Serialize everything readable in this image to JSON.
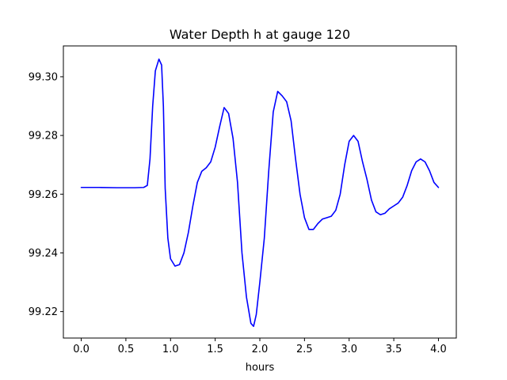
{
  "chart_data": {
    "type": "line",
    "title": "Water Depth h at gauge 120",
    "xlabel": "hours",
    "ylabel": "",
    "xlim": [
      -0.2,
      4.2
    ],
    "ylim": [
      99.211,
      99.3105
    ],
    "xticks": [
      0.0,
      0.5,
      1.0,
      1.5,
      2.0,
      2.5,
      3.0,
      3.5,
      4.0
    ],
    "xtick_labels": [
      "0.0",
      "0.5",
      "1.0",
      "1.5",
      "2.0",
      "2.5",
      "3.0",
      "3.5",
      "4.0"
    ],
    "yticks": [
      99.22,
      99.24,
      99.26,
      99.28,
      99.3
    ],
    "ytick_labels": [
      "99.22",
      "99.24",
      "99.26",
      "99.28",
      "99.30"
    ],
    "grid": false,
    "legend": "none",
    "series": [
      {
        "color": "#0000ff",
        "x": [
          0.0,
          0.2,
          0.4,
          0.6,
          0.7,
          0.74,
          0.77,
          0.8,
          0.83,
          0.87,
          0.9,
          0.92,
          0.94,
          0.97,
          1.0,
          1.05,
          1.1,
          1.15,
          1.2,
          1.25,
          1.3,
          1.35,
          1.4,
          1.45,
          1.5,
          1.55,
          1.6,
          1.65,
          1.7,
          1.75,
          1.8,
          1.85,
          1.9,
          1.93,
          1.96,
          2.0,
          2.05,
          2.1,
          2.15,
          2.2,
          2.25,
          2.3,
          2.35,
          2.4,
          2.45,
          2.5,
          2.55,
          2.6,
          2.65,
          2.7,
          2.75,
          2.8,
          2.85,
          2.9,
          2.95,
          3.0,
          3.05,
          3.1,
          3.15,
          3.2,
          3.25,
          3.3,
          3.35,
          3.4,
          3.45,
          3.5,
          3.55,
          3.6,
          3.65,
          3.7,
          3.75,
          3.8,
          3.85,
          3.9,
          3.95,
          4.0
        ],
        "y": [
          99.2623,
          99.2623,
          99.2622,
          99.2622,
          99.2623,
          99.263,
          99.272,
          99.29,
          99.302,
          99.306,
          99.304,
          99.29,
          99.262,
          99.245,
          99.238,
          99.2355,
          99.236,
          99.24,
          99.247,
          99.256,
          99.264,
          99.2678,
          99.269,
          99.271,
          99.276,
          99.283,
          99.2895,
          99.2875,
          99.279,
          99.264,
          99.24,
          99.225,
          99.216,
          99.215,
          99.219,
          99.23,
          99.245,
          99.268,
          99.288,
          99.295,
          99.2935,
          99.2915,
          99.285,
          99.272,
          99.26,
          99.252,
          99.248,
          99.248,
          99.25,
          99.2515,
          99.252,
          99.2525,
          99.2545,
          99.26,
          99.27,
          99.278,
          99.28,
          99.278,
          99.271,
          99.265,
          99.258,
          99.254,
          99.253,
          99.2535,
          99.255,
          99.256,
          99.257,
          99.259,
          99.263,
          99.268,
          99.271,
          99.272,
          99.271,
          99.268,
          99.264,
          99.2623
        ]
      }
    ]
  }
}
